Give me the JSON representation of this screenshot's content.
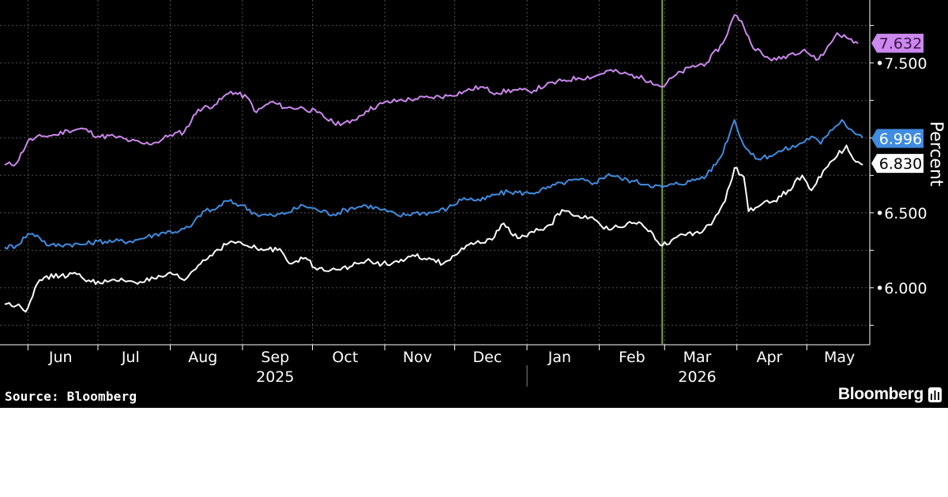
{
  "source_note": "Source: Bloomberg",
  "brand": {
    "name": "Bloomberg",
    "icon": "bloomberg-graph-icon"
  },
  "colors": {
    "background": "#000000",
    "purple": "#cc88ee",
    "blue": "#3f8ce0",
    "white": "#ffffff",
    "event_line": "#76a83c",
    "grid": "#555555"
  },
  "chart_data": {
    "type": "line",
    "ylabel": "Percent",
    "ylim": [
      5.62,
      7.92
    ],
    "y_ticks": [
      "6.000",
      "6.500",
      "7.500"
    ],
    "grid": true,
    "x_range": [
      "2025-05-20",
      "2026-05-28"
    ],
    "months": [
      {
        "label": "Jun",
        "date": "2025-06-15"
      },
      {
        "label": "Jul",
        "date": "2025-07-15"
      },
      {
        "label": "Aug",
        "date": "2025-08-15"
      },
      {
        "label": "Sep",
        "date": "2025-09-15"
      },
      {
        "label": "Oct",
        "date": "2025-10-15"
      },
      {
        "label": "Nov",
        "date": "2025-11-15"
      },
      {
        "label": "Dec",
        "date": "2025-12-15"
      },
      {
        "label": "Jan",
        "date": "2026-01-15"
      },
      {
        "label": "Feb",
        "date": "2026-02-15"
      },
      {
        "label": "Mar",
        "date": "2026-03-15"
      },
      {
        "label": "Apr",
        "date": "2026-04-15"
      },
      {
        "label": "May",
        "date": "2026-05-15"
      }
    ],
    "years": [
      {
        "label": "2025",
        "date": "2025-09-15"
      },
      {
        "label": "2026",
        "date": "2026-03-15"
      }
    ],
    "event_line": {
      "date": "2026-02-28"
    },
    "series": [
      {
        "color": "#cc88ee",
        "last_value": "7.632",
        "points": [
          [
            "2025-05-22",
            6.82
          ],
          [
            "2025-05-27",
            6.83
          ],
          [
            "2025-06-01",
            6.98
          ],
          [
            "2025-06-07",
            7.01
          ],
          [
            "2025-06-13",
            7.02
          ],
          [
            "2025-06-18",
            7.05
          ],
          [
            "2025-06-25",
            7.06
          ],
          [
            "2025-07-01",
            7.01
          ],
          [
            "2025-07-08",
            7.01
          ],
          [
            "2025-07-15",
            6.98
          ],
          [
            "2025-07-21",
            6.96
          ],
          [
            "2025-07-26",
            6.97
          ],
          [
            "2025-08-01",
            7.02
          ],
          [
            "2025-08-07",
            7.04
          ],
          [
            "2025-08-13",
            7.19
          ],
          [
            "2025-08-20",
            7.22
          ],
          [
            "2025-08-27",
            7.31
          ],
          [
            "2025-09-03",
            7.27
          ],
          [
            "2025-09-07",
            7.17
          ],
          [
            "2025-09-13",
            7.24
          ],
          [
            "2025-09-20",
            7.2
          ],
          [
            "2025-09-27",
            7.2
          ],
          [
            "2025-10-03",
            7.17
          ],
          [
            "2025-10-10",
            7.1
          ],
          [
            "2025-10-17",
            7.1
          ],
          [
            "2025-10-24",
            7.18
          ],
          [
            "2025-10-31",
            7.23
          ],
          [
            "2025-11-07",
            7.25
          ],
          [
            "2025-11-14",
            7.26
          ],
          [
            "2025-11-21",
            7.27
          ],
          [
            "2025-11-28",
            7.28
          ],
          [
            "2025-12-05",
            7.31
          ],
          [
            "2025-12-12",
            7.34
          ],
          [
            "2025-12-19",
            7.3
          ],
          [
            "2025-12-26",
            7.32
          ],
          [
            "2026-01-02",
            7.31
          ],
          [
            "2026-01-09",
            7.35
          ],
          [
            "2026-01-16",
            7.38
          ],
          [
            "2026-01-23",
            7.4
          ],
          [
            "2026-01-30",
            7.41
          ],
          [
            "2026-02-05",
            7.45
          ],
          [
            "2026-02-11",
            7.43
          ],
          [
            "2026-02-17",
            7.41
          ],
          [
            "2026-02-23",
            7.38
          ],
          [
            "2026-02-28",
            7.34
          ],
          [
            "2026-03-05",
            7.41
          ],
          [
            "2026-03-12",
            7.47
          ],
          [
            "2026-03-19",
            7.5
          ],
          [
            "2026-03-26",
            7.63
          ],
          [
            "2026-03-31",
            7.82
          ],
          [
            "2026-04-03",
            7.78
          ],
          [
            "2026-04-07",
            7.63
          ],
          [
            "2026-04-13",
            7.54
          ],
          [
            "2026-04-18",
            7.52
          ],
          [
            "2026-04-24",
            7.56
          ],
          [
            "2026-04-30",
            7.59
          ],
          [
            "2026-05-05",
            7.52
          ],
          [
            "2026-05-09",
            7.58
          ],
          [
            "2026-05-14",
            7.7
          ],
          [
            "2026-05-19",
            7.66
          ],
          [
            "2026-05-23",
            7.63
          ]
        ]
      },
      {
        "color": "#3f8ce0",
        "last_value": "6.996",
        "points": [
          [
            "2025-05-22",
            6.27
          ],
          [
            "2025-05-27",
            6.28
          ],
          [
            "2025-06-01",
            6.36
          ],
          [
            "2025-06-05",
            6.35
          ],
          [
            "2025-06-10",
            6.28
          ],
          [
            "2025-06-17",
            6.29
          ],
          [
            "2025-06-25",
            6.29
          ],
          [
            "2025-07-01",
            6.31
          ],
          [
            "2025-07-08",
            6.31
          ],
          [
            "2025-07-15",
            6.31
          ],
          [
            "2025-07-22",
            6.34
          ],
          [
            "2025-07-29",
            6.37
          ],
          [
            "2025-08-05",
            6.38
          ],
          [
            "2025-08-10",
            6.41
          ],
          [
            "2025-08-15",
            6.51
          ],
          [
            "2025-08-20",
            6.52
          ],
          [
            "2025-08-25",
            6.58
          ],
          [
            "2025-09-01",
            6.55
          ],
          [
            "2025-09-07",
            6.49
          ],
          [
            "2025-09-14",
            6.48
          ],
          [
            "2025-09-20",
            6.5
          ],
          [
            "2025-09-27",
            6.55
          ],
          [
            "2025-10-03",
            6.52
          ],
          [
            "2025-10-10",
            6.49
          ],
          [
            "2025-10-17",
            6.53
          ],
          [
            "2025-10-24",
            6.55
          ],
          [
            "2025-10-31",
            6.52
          ],
          [
            "2025-11-07",
            6.48
          ],
          [
            "2025-11-14",
            6.5
          ],
          [
            "2025-11-21",
            6.5
          ],
          [
            "2025-11-28",
            6.53
          ],
          [
            "2025-12-05",
            6.6
          ],
          [
            "2025-12-12",
            6.58
          ],
          [
            "2025-12-18",
            6.62
          ],
          [
            "2025-12-24",
            6.64
          ],
          [
            "2026-01-02",
            6.63
          ],
          [
            "2026-01-09",
            6.66
          ],
          [
            "2026-01-16",
            6.7
          ],
          [
            "2026-01-23",
            6.72
          ],
          [
            "2026-01-30",
            6.7
          ],
          [
            "2026-02-05",
            6.76
          ],
          [
            "2026-02-10",
            6.73
          ],
          [
            "2026-02-16",
            6.71
          ],
          [
            "2026-02-22",
            6.69
          ],
          [
            "2026-02-28",
            6.67
          ],
          [
            "2026-03-05",
            6.69
          ],
          [
            "2026-03-12",
            6.71
          ],
          [
            "2026-03-19",
            6.75
          ],
          [
            "2026-03-25",
            6.87
          ],
          [
            "2026-03-31",
            7.12
          ],
          [
            "2026-04-04",
            6.95
          ],
          [
            "2026-04-09",
            6.86
          ],
          [
            "2026-04-15",
            6.88
          ],
          [
            "2026-04-21",
            6.92
          ],
          [
            "2026-04-27",
            6.95
          ],
          [
            "2026-05-03",
            7.01
          ],
          [
            "2026-05-07",
            6.96
          ],
          [
            "2026-05-11",
            7.05
          ],
          [
            "2026-05-16",
            7.12
          ],
          [
            "2026-05-21",
            7.04
          ],
          [
            "2026-05-25",
            7.0
          ]
        ]
      },
      {
        "color": "#ffffff",
        "last_value": "6.830",
        "points": [
          [
            "2025-05-22",
            5.89
          ],
          [
            "2025-05-28",
            5.89
          ],
          [
            "2025-05-31",
            5.84
          ],
          [
            "2025-06-04",
            6.0
          ],
          [
            "2025-06-08",
            6.07
          ],
          [
            "2025-06-15",
            6.08
          ],
          [
            "2025-06-22",
            6.09
          ],
          [
            "2025-06-28",
            6.04
          ],
          [
            "2025-07-05",
            6.04
          ],
          [
            "2025-07-12",
            6.05
          ],
          [
            "2025-07-19",
            6.04
          ],
          [
            "2025-07-26",
            6.06
          ],
          [
            "2025-08-02",
            6.09
          ],
          [
            "2025-08-07",
            6.05
          ],
          [
            "2025-08-13",
            6.15
          ],
          [
            "2025-08-20",
            6.24
          ],
          [
            "2025-08-27",
            6.31
          ],
          [
            "2025-09-03",
            6.28
          ],
          [
            "2025-09-10",
            6.25
          ],
          [
            "2025-09-17",
            6.26
          ],
          [
            "2025-09-22",
            6.16
          ],
          [
            "2025-09-28",
            6.2
          ],
          [
            "2025-10-03",
            6.12
          ],
          [
            "2025-10-10",
            6.13
          ],
          [
            "2025-10-17",
            6.14
          ],
          [
            "2025-10-24",
            6.18
          ],
          [
            "2025-10-31",
            6.16
          ],
          [
            "2025-11-07",
            6.17
          ],
          [
            "2025-11-14",
            6.21
          ],
          [
            "2025-11-21",
            6.19
          ],
          [
            "2025-11-26",
            6.16
          ],
          [
            "2025-12-03",
            6.24
          ],
          [
            "2025-12-10",
            6.3
          ],
          [
            "2025-12-17",
            6.32
          ],
          [
            "2025-12-22",
            6.43
          ],
          [
            "2025-12-28",
            6.33
          ],
          [
            "2026-01-04",
            6.37
          ],
          [
            "2026-01-11",
            6.42
          ],
          [
            "2026-01-16",
            6.52
          ],
          [
            "2026-01-22",
            6.48
          ],
          [
            "2026-01-28",
            6.47
          ],
          [
            "2026-02-02",
            6.41
          ],
          [
            "2026-02-07",
            6.4
          ],
          [
            "2026-02-13",
            6.43
          ],
          [
            "2026-02-19",
            6.43
          ],
          [
            "2026-02-24",
            6.36
          ],
          [
            "2026-02-28",
            6.28
          ],
          [
            "2026-03-05",
            6.33
          ],
          [
            "2026-03-10",
            6.35
          ],
          [
            "2026-03-17",
            6.37
          ],
          [
            "2026-03-22",
            6.45
          ],
          [
            "2026-03-27",
            6.58
          ],
          [
            "2026-03-31",
            6.8
          ],
          [
            "2026-04-04",
            6.74
          ],
          [
            "2026-04-06",
            6.51
          ],
          [
            "2026-04-11",
            6.55
          ],
          [
            "2026-04-17",
            6.58
          ],
          [
            "2026-04-23",
            6.65
          ],
          [
            "2026-04-29",
            6.75
          ],
          [
            "2026-05-03",
            6.65
          ],
          [
            "2026-05-08",
            6.78
          ],
          [
            "2026-05-14",
            6.88
          ],
          [
            "2026-05-18",
            6.95
          ],
          [
            "2026-05-22",
            6.84
          ],
          [
            "2026-05-25",
            6.82
          ]
        ]
      }
    ]
  }
}
